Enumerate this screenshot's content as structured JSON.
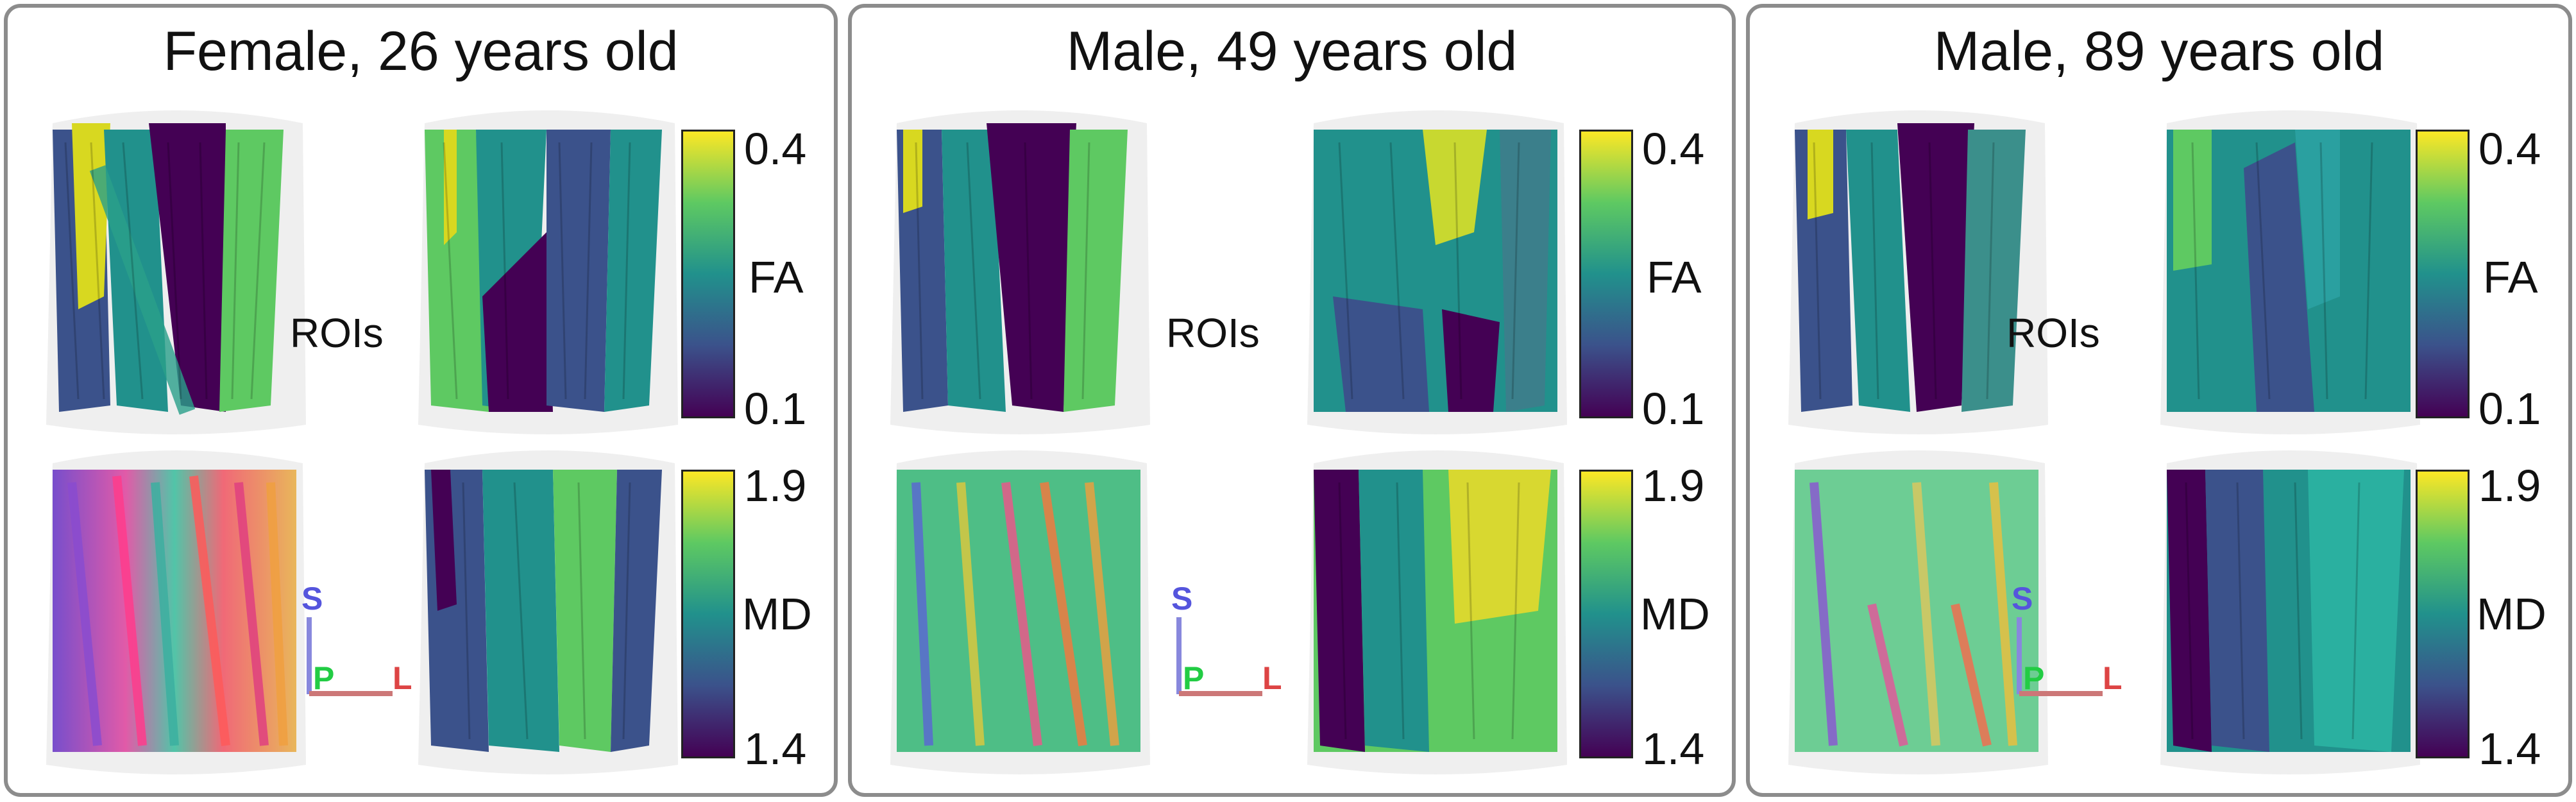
{
  "panels": [
    {
      "title": "Female, 26 years old",
      "rois_label": "ROIs"
    },
    {
      "title": "Male, 49 years old",
      "rois_label": "ROIs"
    },
    {
      "title": "Male, 89 years old",
      "rois_label": "ROIs"
    }
  ],
  "colorbars": {
    "fa": {
      "top": "0.4",
      "label": "FA",
      "bottom": "0.1"
    },
    "md": {
      "top": "1.9",
      "label": "MD",
      "bottom": "1.4"
    }
  },
  "axes": {
    "s": "S",
    "p": "P",
    "l": "L"
  },
  "colors": {
    "panel_border": "#8c8c8c",
    "viridis": [
      "#440154",
      "#3b528b",
      "#21918c",
      "#5ec962",
      "#fde725"
    ],
    "axis_s": "#5555dd",
    "axis_p": "#22cc44",
    "axis_l": "#dd4444"
  }
}
